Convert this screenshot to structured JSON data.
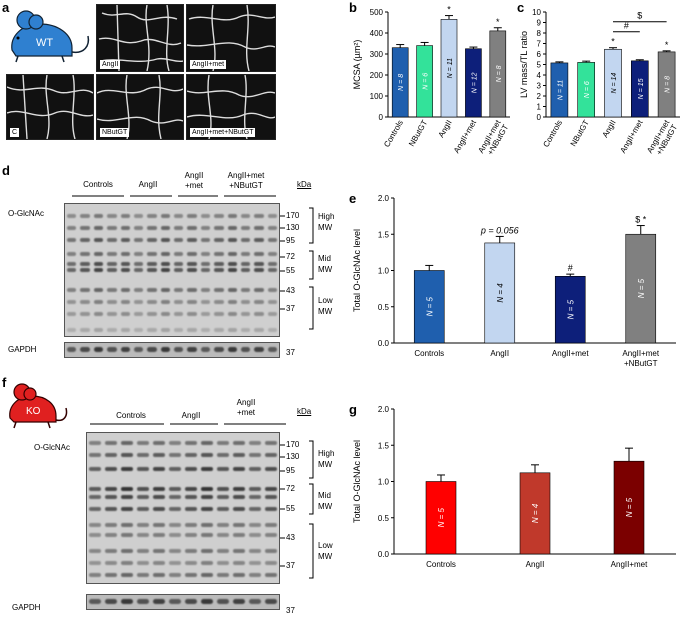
{
  "panels": {
    "a": {
      "label": "a",
      "mouse": "WT",
      "captions": [
        "AngII",
        "AngII+met",
        "C",
        "NButGT",
        "AngII+met+NButGT"
      ]
    },
    "b": {
      "label": "b"
    },
    "c": {
      "label": "c"
    },
    "d": {
      "label": "d",
      "groups": [
        "Controls",
        "AngII",
        "AngII\n+met",
        "AngII+met\n+NButGT"
      ],
      "row_label": "O-GlcNAc",
      "loading": "GAPDH",
      "kda_title": "kDa",
      "markers": [
        "170",
        "130",
        "95",
        "72",
        "55",
        "43",
        "37"
      ],
      "gapdh_marker": "37",
      "ranges": [
        {
          "l1": "High",
          "l2": "MW"
        },
        {
          "l1": "Mid",
          "l2": "MW"
        },
        {
          "l1": "Low",
          "l2": "MW"
        }
      ]
    },
    "e": {
      "label": "e"
    },
    "f": {
      "label": "f",
      "mouse": "KO",
      "groups": [
        "Controls",
        "AngII",
        "AngII\n+met"
      ],
      "row_label": "O-GlcNAc",
      "loading": "GAPDH",
      "kda_title": "kDa",
      "markers": [
        "170",
        "130",
        "95",
        "72",
        "55",
        "43",
        "37"
      ],
      "gapdh_marker": "37",
      "ranges": [
        {
          "l1": "High",
          "l2": "MW"
        },
        {
          "l1": "Mid",
          "l2": "MW"
        },
        {
          "l1": "Low",
          "l2": "MW"
        }
      ]
    },
    "g": {
      "label": "g"
    }
  },
  "colors": {
    "controls": "#1f5fae",
    "nbutgt": "#33e29a",
    "angii": "#c2d6f0",
    "angii_met": "#0d1f7a",
    "angii_met_nbutgt": "#808080",
    "ko_controls": "#ff0000",
    "ko_angii": "#c0392b",
    "ko_angii_met": "#7b0000",
    "wt_mouse": "#2f80d0",
    "ko_mouse": "#e02020"
  },
  "chart_data": [
    {
      "panel": "b",
      "type": "bar",
      "ylabel": "MCSA (µm²)",
      "ylim": [
        0,
        500
      ],
      "yticks": [
        0,
        100,
        200,
        300,
        400,
        500
      ],
      "categories": [
        "Controls",
        "NButGT",
        "AngII",
        "AngII+met",
        "AngII+met\n+NButGT"
      ],
      "values": [
        330,
        340,
        465,
        325,
        410
      ],
      "errors": [
        15,
        15,
        18,
        8,
        15
      ],
      "n_labels": [
        "N = 8",
        "N = 6",
        "N = 11",
        "N = 12",
        "N = 8"
      ],
      "marks": [
        "",
        "",
        "*",
        "",
        "*"
      ],
      "sig": [
        {
          "from": 2,
          "to": 3,
          "label": "#"
        },
        {
          "from": 3,
          "to": 4,
          "label": "$"
        }
      ]
    },
    {
      "panel": "c",
      "type": "bar",
      "ylabel": "LV mass/TL ratio",
      "ylim": [
        0,
        10
      ],
      "yticks": [
        0,
        1,
        2,
        3,
        4,
        5,
        6,
        7,
        8,
        9,
        10
      ],
      "categories": [
        "Controls",
        "NButGT",
        "AngII",
        "AngII+met",
        "AngII+met\n+NButGT"
      ],
      "values": [
        5.15,
        5.2,
        6.45,
        5.35,
        6.2
      ],
      "errors": [
        0.1,
        0.12,
        0.15,
        0.1,
        0.1
      ],
      "n_labels": [
        "N = 11",
        "N = 6",
        "N = 14",
        "N = 15",
        "N = 8"
      ],
      "marks": [
        "",
        "",
        "*",
        "",
        "*"
      ],
      "sig": [
        {
          "from": 2,
          "to": 3,
          "label": "#"
        },
        {
          "from": 2,
          "to": 4,
          "label": "$"
        }
      ]
    },
    {
      "panel": "e",
      "type": "bar",
      "ylabel": "Total O-GlcNAc level",
      "ylim": [
        0,
        2.0
      ],
      "yticks": [
        0.0,
        0.5,
        1.0,
        1.5,
        2.0
      ],
      "categories": [
        "Controls",
        "AngII",
        "AngII+met",
        "AngII+met\n+NButGT"
      ],
      "values": [
        1.0,
        1.38,
        0.92,
        1.5
      ],
      "errors": [
        0.07,
        0.09,
        0.03,
        0.12
      ],
      "n_labels": [
        "N = 5",
        "N = 4",
        "N = 5",
        "N = 5"
      ],
      "marks": [
        "",
        "p = 0.056",
        "#",
        "$ *"
      ]
    },
    {
      "panel": "g",
      "type": "bar",
      "ylabel": "Total O-GlcNAc level",
      "ylim": [
        0,
        2.0
      ],
      "yticks": [
        0.0,
        0.5,
        1.0,
        1.5,
        2.0
      ],
      "categories": [
        "Controls",
        "AngII",
        "AngII+met"
      ],
      "values": [
        1.0,
        1.12,
        1.28
      ],
      "errors": [
        0.09,
        0.11,
        0.18
      ],
      "n_labels": [
        "N = 5",
        "N = 4",
        "N = 5"
      ],
      "marks": [
        "",
        "",
        ""
      ]
    }
  ]
}
